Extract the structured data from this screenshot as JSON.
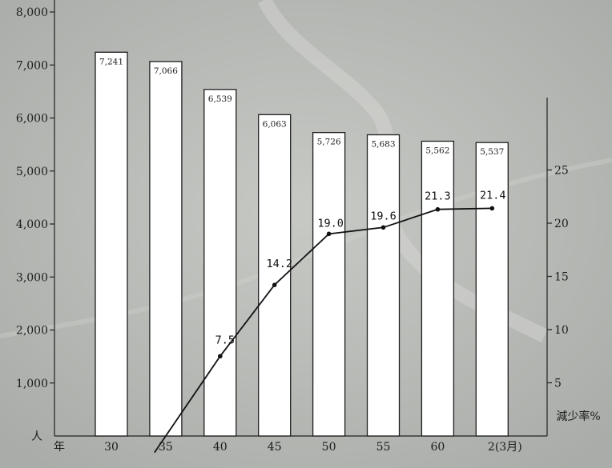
{
  "chart_data": {
    "type": "bar",
    "categories": [
      "30",
      "35",
      "40",
      "45",
      "50",
      "55",
      "60",
      "2(3月)"
    ],
    "series": [
      {
        "type": "bar",
        "axis": "left",
        "values": [
          7241,
          7066,
          6539,
          6063,
          5726,
          5683,
          5562,
          5537
        ],
        "labels": [
          "7,241",
          "7,066",
          "6,539",
          "6,063",
          "5,726",
          "5,683",
          "5,562",
          "5,537"
        ]
      },
      {
        "type": "line",
        "axis": "right",
        "values": [
          null,
          0,
          7.5,
          14.2,
          19.0,
          19.6,
          21.3,
          21.4
        ],
        "labels": [
          "",
          "",
          "7.5",
          "14.2",
          "19.0",
          "19.6",
          "21.3",
          "21.4"
        ]
      }
    ],
    "left_axis": {
      "unit_label": "人",
      "ylim": [
        0,
        8000
      ],
      "ticks": [
        1000,
        2000,
        3000,
        4000,
        5000,
        6000,
        7000,
        8000
      ],
      "tick_labels": [
        "1,000",
        "2,000",
        "3,000",
        "4,000",
        "5,000",
        "6,000",
        "7,000",
        "8,000"
      ]
    },
    "right_axis": {
      "label": "減少率%",
      "ylim": [
        0,
        25
      ],
      "ticks": [
        5,
        10,
        15,
        20,
        25
      ],
      "tick_labels": [
        "5",
        "10",
        "15",
        "20",
        "25"
      ]
    },
    "x_axis": {
      "unit_label": "年",
      "tick_labels": [
        "30",
        "35",
        "40",
        "45",
        "50",
        "55",
        "60",
        "2(3月)"
      ]
    },
    "grid": false,
    "legend": "none"
  }
}
